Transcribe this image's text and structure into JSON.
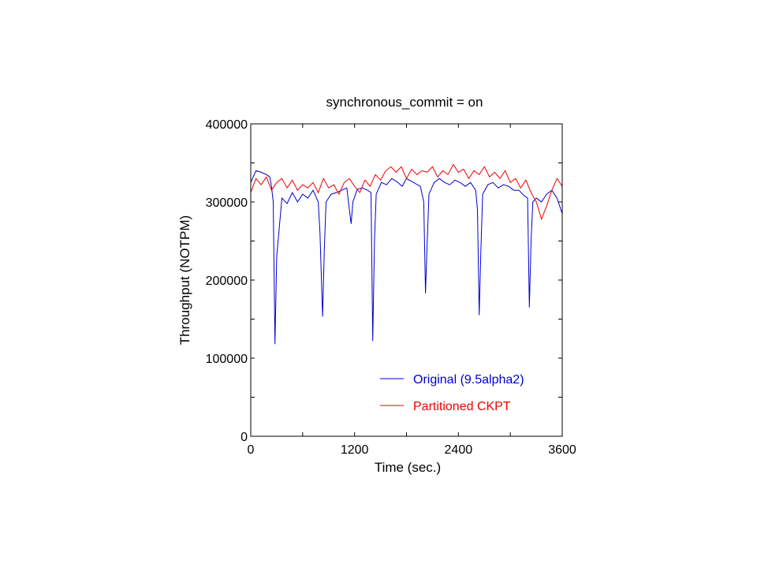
{
  "chart_data": {
    "type": "line",
    "title": "synchronous_commit = on",
    "xlabel": "Time (sec.)",
    "ylabel": "Throughput (NOTPM)",
    "xlim": [
      0,
      3600
    ],
    "ylim": [
      0,
      400000
    ],
    "xticks": [
      0,
      1200,
      2400,
      3600
    ],
    "yticks": [
      0,
      100000,
      200000,
      300000,
      400000
    ],
    "xtick_labels": [
      "0",
      "1200",
      "2400",
      "3600"
    ],
    "ytick_labels": [
      "0",
      "100000",
      "200000",
      "300000",
      "400000"
    ],
    "legend_position": "bottom-right",
    "grid": false,
    "series": [
      {
        "name": "Original (9.5alpha2)",
        "color": "#0000cc",
        "x": [
          0,
          60,
          120,
          180,
          220,
          240,
          260,
          280,
          300,
          360,
          420,
          480,
          540,
          600,
          660,
          720,
          780,
          800,
          830,
          850,
          870,
          930,
          990,
          1050,
          1110,
          1140,
          1160,
          1180,
          1230,
          1290,
          1350,
          1390,
          1410,
          1430,
          1450,
          1510,
          1570,
          1630,
          1690,
          1750,
          1800,
          1960,
          2000,
          2020,
          2040,
          2060,
          2120,
          2180,
          2240,
          2300,
          2360,
          2420,
          2480,
          2540,
          2600,
          2620,
          2640,
          2660,
          2680,
          2740,
          2800,
          2860,
          2920,
          2980,
          3040,
          3100,
          3160,
          3200,
          3220,
          3240,
          3260,
          3300,
          3360,
          3420,
          3480,
          3540,
          3600
        ],
        "y": [
          325000,
          340000,
          338000,
          335000,
          332000,
          320000,
          300000,
          118000,
          230000,
          305000,
          298000,
          312000,
          300000,
          310000,
          305000,
          315000,
          300000,
          260000,
          153000,
          240000,
          300000,
          310000,
          312000,
          315000,
          318000,
          290000,
          272000,
          300000,
          316000,
          318000,
          315000,
          312000,
          122000,
          250000,
          310000,
          325000,
          322000,
          330000,
          326000,
          320000,
          330000,
          320000,
          300000,
          183000,
          250000,
          310000,
          325000,
          330000,
          325000,
          322000,
          328000,
          325000,
          320000,
          325000,
          315000,
          290000,
          155000,
          240000,
          310000,
          322000,
          325000,
          318000,
          322000,
          320000,
          315000,
          315000,
          308000,
          305000,
          165000,
          250000,
          300000,
          305000,
          300000,
          310000,
          315000,
          305000,
          285000
        ]
      },
      {
        "name": "Partitioned CKPT",
        "color": "#ee0000",
        "x": [
          0,
          60,
          120,
          180,
          240,
          300,
          360,
          420,
          480,
          540,
          600,
          660,
          720,
          780,
          840,
          900,
          960,
          1020,
          1080,
          1140,
          1200,
          1260,
          1320,
          1380,
          1440,
          1500,
          1560,
          1620,
          1680,
          1740,
          1800,
          1860,
          1920,
          1980,
          2040,
          2100,
          2160,
          2220,
          2280,
          2340,
          2400,
          2460,
          2520,
          2580,
          2640,
          2700,
          2760,
          2820,
          2880,
          2940,
          3000,
          3060,
          3120,
          3180,
          3240,
          3300,
          3360,
          3420,
          3480,
          3540,
          3600
        ],
        "y": [
          312000,
          330000,
          322000,
          332000,
          315000,
          325000,
          330000,
          318000,
          328000,
          315000,
          322000,
          318000,
          325000,
          312000,
          330000,
          318000,
          322000,
          310000,
          325000,
          330000,
          320000,
          312000,
          328000,
          320000,
          335000,
          328000,
          340000,
          345000,
          338000,
          345000,
          330000,
          342000,
          335000,
          340000,
          338000,
          345000,
          332000,
          340000,
          335000,
          348000,
          338000,
          342000,
          330000,
          340000,
          335000,
          345000,
          332000,
          338000,
          330000,
          340000,
          325000,
          330000,
          318000,
          328000,
          312000,
          300000,
          278000,
          295000,
          315000,
          330000,
          320000
        ]
      }
    ]
  }
}
